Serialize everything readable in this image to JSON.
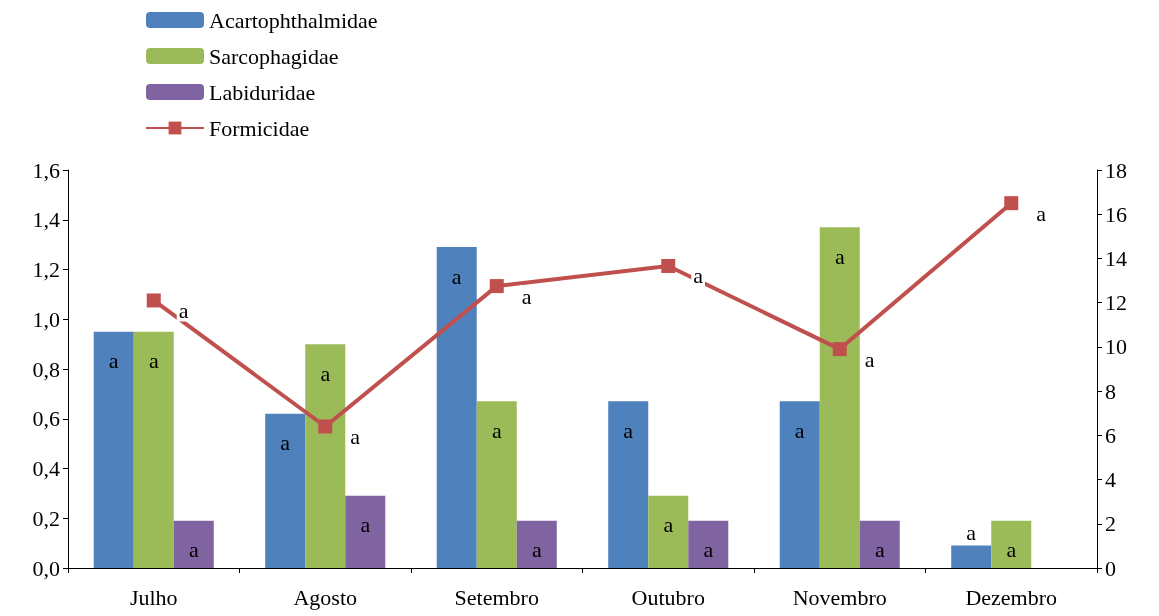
{
  "chart_data": {
    "type": "bar",
    "categories": [
      "Julho",
      "Agosto",
      "Setembro",
      "Outubro",
      "Novembro",
      "Dezembro"
    ],
    "series": [
      {
        "name": "Acartophthalmidae",
        "color": "#4f81bd",
        "values": [
          0.95,
          0.62,
          1.29,
          0.67,
          0.67,
          0.09
        ],
        "value_labels": [
          "a",
          "a",
          "a",
          "a",
          "a",
          "a"
        ]
      },
      {
        "name": "Sarcophagidae",
        "color": "#9bbb59",
        "values": [
          0.95,
          0.9,
          0.67,
          0.29,
          1.37,
          0.19
        ],
        "value_labels": [
          "a",
          "a",
          "a",
          "a",
          "a",
          "a"
        ]
      },
      {
        "name": "Labiduridae",
        "color": "#8064a2",
        "values": [
          0.19,
          0.29,
          0.19,
          0.19,
          0.19,
          null
        ],
        "value_labels": [
          "a",
          "a",
          "a",
          "a",
          "a",
          null
        ]
      },
      {
        "name": "Formicidae",
        "color": "#c0504d",
        "type": "line",
        "axis": "y2",
        "marker": "square",
        "values": [
          12.1,
          6.4,
          12.75,
          13.66,
          9.9,
          16.5
        ],
        "value_labels": [
          "a",
          "a",
          "a",
          "a",
          "a",
          "a"
        ]
      }
    ],
    "ylim": [
      0,
      1.6
    ],
    "yticks": [
      {
        "value": 0,
        "label": "0,0"
      },
      {
        "value": 0.2,
        "label": "0,2"
      },
      {
        "value": 0.4,
        "label": "0,4"
      },
      {
        "value": 0.6,
        "label": "0,6"
      },
      {
        "value": 0.8,
        "label": "0,8"
      },
      {
        "value": 1,
        "label": "1,0"
      },
      {
        "value": 1.2,
        "label": "1,2"
      },
      {
        "value": 1.4,
        "label": "1,4"
      },
      {
        "value": 1.6,
        "label": "1,6"
      }
    ],
    "y2lim": [
      0,
      18
    ],
    "y2ticks": [
      0,
      2,
      4,
      6,
      8,
      10,
      12,
      14,
      16,
      18
    ],
    "grid": false,
    "legend": "top left"
  }
}
